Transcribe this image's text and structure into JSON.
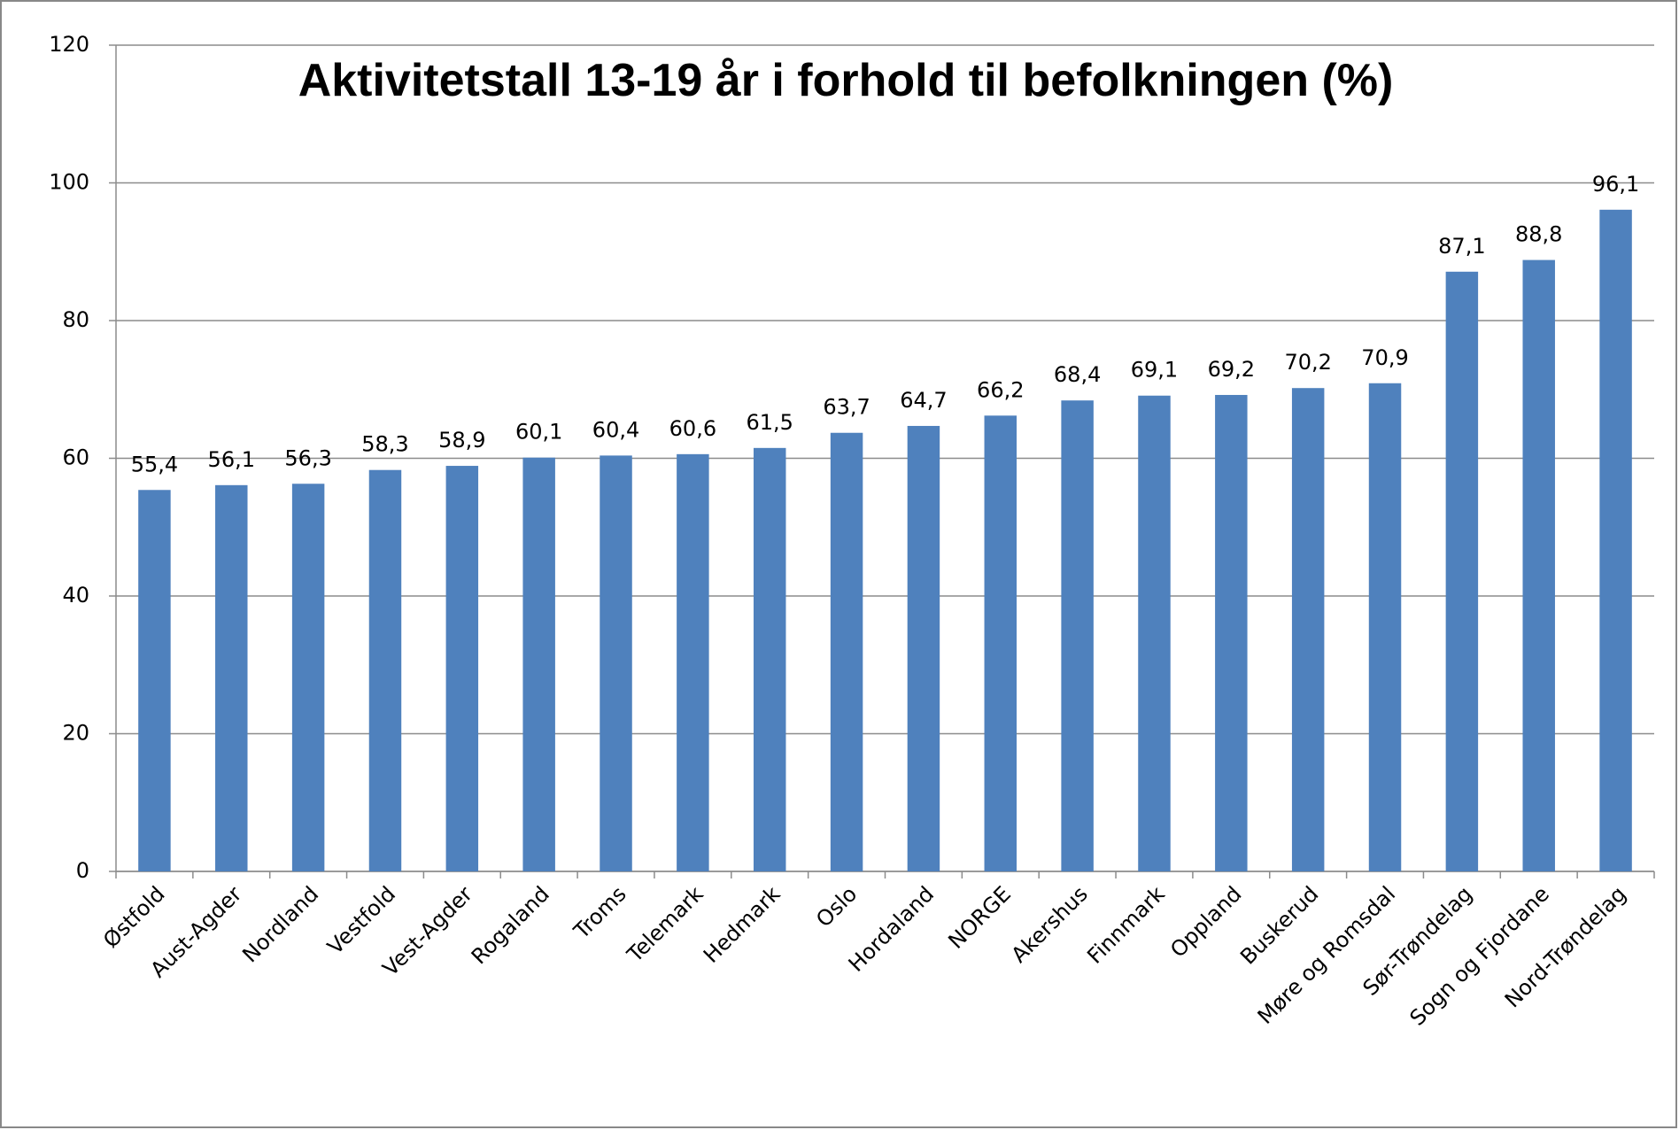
{
  "chart_data": {
    "type": "bar",
    "title": "Aktivitetstall 13-19 år i forhold til befolkningen (%)",
    "categories": [
      "Østfold",
      "Aust-Agder",
      "Nordland",
      "Vestfold",
      "Vest-Agder",
      "Rogaland",
      "Troms",
      "Telemark",
      "Hedmark",
      "Oslo",
      "Hordaland",
      "NORGE",
      "Akershus",
      "Finnmark",
      "Oppland",
      "Buskerud",
      "Møre og Romsdal",
      "Sør-Trøndelag",
      "Sogn og Fjordane",
      "Nord-Trøndelag"
    ],
    "values": [
      55.4,
      56.1,
      56.3,
      58.3,
      58.9,
      60.1,
      60.4,
      60.6,
      61.5,
      63.7,
      64.7,
      66.2,
      68.4,
      69.1,
      69.2,
      70.2,
      70.9,
      87.1,
      88.8,
      96.1
    ],
    "value_labels": [
      "55,4",
      "56,1",
      "56,3",
      "58,3",
      "58,9",
      "60,1",
      "60,4",
      "60,6",
      "61,5",
      "63,7",
      "64,7",
      "66,2",
      "68,4",
      "69,1",
      "69,2",
      "70,2",
      "70,9",
      "87,1",
      "88,8",
      "96,1"
    ],
    "color": "#4f81bd",
    "ylim": [
      0,
      120
    ],
    "yticks": [
      0,
      20,
      40,
      60,
      80,
      100,
      120
    ],
    "grid": true
  }
}
